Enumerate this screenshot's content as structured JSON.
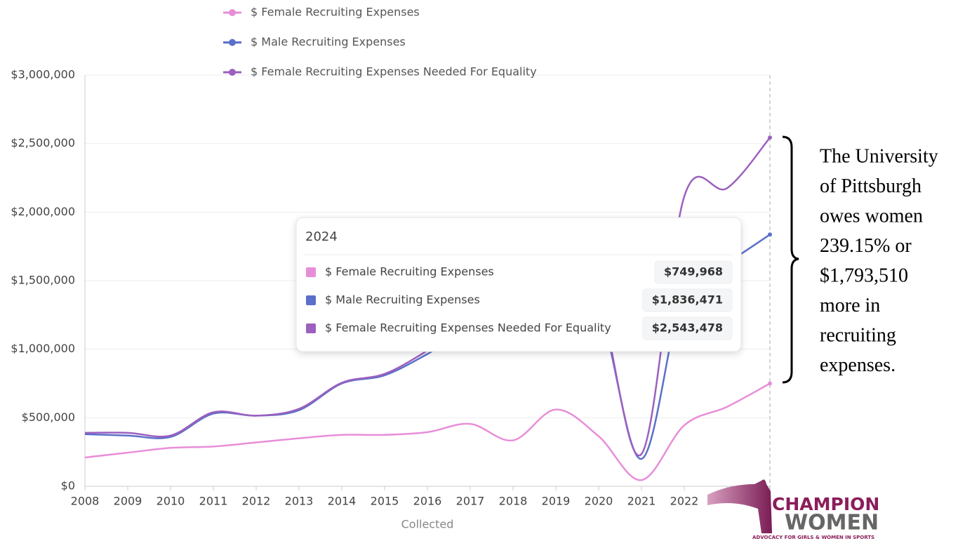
{
  "chart_data": {
    "type": "line",
    "x_label": "Collected",
    "categories": [
      "2008",
      "2009",
      "2010",
      "2011",
      "2012",
      "2013",
      "2014",
      "2015",
      "2016",
      "2017",
      "2018",
      "2019",
      "2020",
      "2021",
      "2022",
      null,
      null
    ],
    "series": [
      {
        "name": "$ Female Recruiting Expenses",
        "color": "#e88ed8",
        "values": [
          210000,
          245000,
          280000,
          290000,
          320000,
          350000,
          375000,
          375000,
          395000,
          455000,
          335000,
          560000,
          365000,
          45000,
          445000,
          580000,
          749968
        ],
        "value_labels": [
          null,
          null,
          null,
          null,
          null,
          null,
          null,
          null,
          null,
          null,
          null,
          null,
          null,
          null,
          null,
          null,
          "$749,968"
        ]
      },
      {
        "name": "$ Male Recruiting Expenses",
        "color": "#5b70c9",
        "values": [
          380000,
          370000,
          360000,
          530000,
          515000,
          555000,
          750000,
          810000,
          965000,
          1150000,
          1250000,
          1450000,
          1300000,
          200000,
          1450000,
          1630000,
          1836471
        ],
        "value_labels": [
          null,
          null,
          null,
          null,
          null,
          null,
          null,
          null,
          null,
          null,
          null,
          null,
          null,
          null,
          null,
          null,
          "$1,836,471"
        ]
      },
      {
        "name": "$ Female Recruiting Expenses Needed For Equality",
        "color": "#9c60bf",
        "values": [
          390000,
          390000,
          370000,
          540000,
          515000,
          565000,
          755000,
          820000,
          990000,
          1200000,
          1300000,
          1500000,
          1350000,
          235000,
          2115000,
          2175000,
          2543478
        ],
        "value_labels": [
          null,
          null,
          null,
          null,
          null,
          null,
          null,
          null,
          null,
          null,
          null,
          null,
          null,
          null,
          null,
          null,
          "$2,543,478"
        ]
      }
    ],
    "ylim": [
      0,
      3000000
    ],
    "yticks": [
      {
        "value": 0,
        "label": "$0"
      },
      {
        "value": 500000,
        "label": "$500,000"
      },
      {
        "value": 1000000,
        "label": "$1,000,000"
      },
      {
        "value": 1500000,
        "label": "$1,500,000"
      },
      {
        "value": 2000000,
        "label": "$2,000,000"
      },
      {
        "value": 2500000,
        "label": "$2,500,000"
      },
      {
        "value": 3000000,
        "label": "$3,000,000"
      }
    ],
    "grid": true,
    "tooltip": {
      "title": "2024"
    },
    "annotation": [
      "The University",
      "of Pittsburgh",
      "owes women",
      "239.15% or",
      "$1,793,510",
      "more in",
      "recruiting",
      "expenses."
    ]
  },
  "logo": {
    "name": "CHAMPION",
    "name2": "WOMEN",
    "tagline": "ADVOCACY FOR GIRLS & WOMEN IN SPORTS"
  }
}
